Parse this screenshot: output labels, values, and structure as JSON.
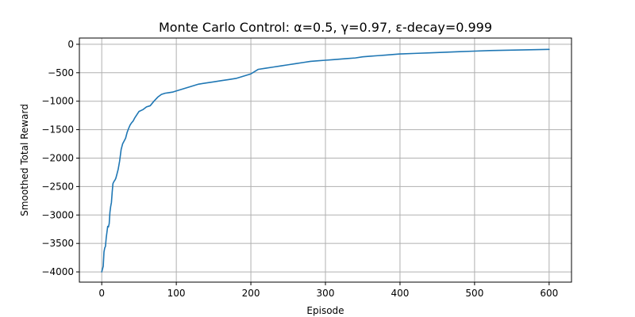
{
  "chart_data": {
    "type": "line",
    "title": "Monte Carlo Control: α=0.5, γ=0.97, ε-decay=0.999",
    "xlabel": "Episode",
    "ylabel": "Smoothed Total Reward",
    "xlim": [
      -30,
      630
    ],
    "ylim": [
      -4180,
      110
    ],
    "xticks": [
      0,
      100,
      200,
      300,
      400,
      500,
      600
    ],
    "xtick_labels": [
      "0",
      "100",
      "200",
      "300",
      "400",
      "500",
      "600"
    ],
    "yticks": [
      0,
      -500,
      -1000,
      -1500,
      -2000,
      -2500,
      -3000,
      -3500,
      -4000
    ],
    "ytick_labels": [
      "0",
      "−500",
      "−1000",
      "−1500",
      "−2000",
      "−2500",
      "−3000",
      "−3500",
      "−4000"
    ],
    "grid": true,
    "series": [
      {
        "color": "#1f77b4",
        "x": [
          0,
          1,
          2,
          3,
          4,
          5,
          6,
          7,
          8,
          9,
          10,
          11,
          12,
          13,
          14,
          15,
          16,
          17,
          18,
          19,
          20,
          22,
          24,
          26,
          28,
          30,
          32,
          34,
          36,
          38,
          40,
          42,
          44,
          46,
          48,
          50,
          55,
          60,
          65,
          70,
          75,
          80,
          85,
          90,
          95,
          100,
          110,
          120,
          130,
          140,
          150,
          160,
          170,
          180,
          190,
          200,
          210,
          220,
          230,
          240,
          250,
          260,
          270,
          280,
          290,
          300,
          310,
          320,
          330,
          340,
          350,
          360,
          370,
          380,
          390,
          400,
          420,
          440,
          460,
          480,
          500,
          520,
          540,
          560,
          580,
          600
        ],
        "y": [
          -4000,
          -3950,
          -3900,
          -3650,
          -3580,
          -3550,
          -3400,
          -3300,
          -3200,
          -3210,
          -3150,
          -2950,
          -2850,
          -2780,
          -2600,
          -2450,
          -2420,
          -2400,
          -2380,
          -2350,
          -2300,
          -2200,
          -2050,
          -1850,
          -1750,
          -1700,
          -1650,
          -1550,
          -1480,
          -1420,
          -1380,
          -1350,
          -1300,
          -1260,
          -1220,
          -1180,
          -1150,
          -1100,
          -1080,
          -1000,
          -930,
          -880,
          -860,
          -850,
          -840,
          -820,
          -780,
          -740,
          -700,
          -680,
          -660,
          -640,
          -620,
          -600,
          -560,
          -520,
          -440,
          -420,
          -400,
          -380,
          -360,
          -340,
          -320,
          -300,
          -290,
          -280,
          -270,
          -260,
          -250,
          -240,
          -220,
          -210,
          -200,
          -190,
          -180,
          -170,
          -160,
          -150,
          -140,
          -130,
          -120,
          -110,
          -105,
          -100,
          -95,
          -90
        ]
      }
    ]
  }
}
